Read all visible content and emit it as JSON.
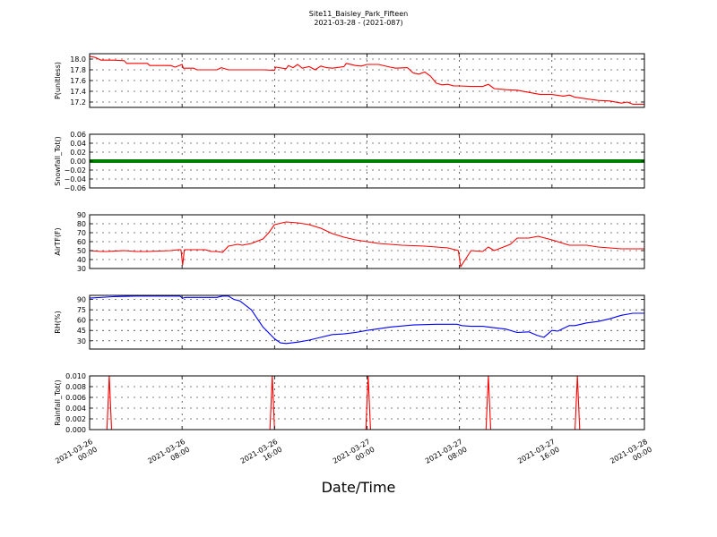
{
  "figure": {
    "title_line1": "Site11_Baisley_Park_Fifteen",
    "title_line2": "2021-03-28 - (2021-087)",
    "xlabel": "Date/Time",
    "x_ticks": [
      {
        "t": 0,
        "line1": "2021-03-26",
        "line2": "00:00"
      },
      {
        "t": 8,
        "line1": "2021-03-26",
        "line2": "08:00"
      },
      {
        "t": 16,
        "line1": "2021-03-26",
        "line2": "16:00"
      },
      {
        "t": 24,
        "line1": "2021-03-27",
        "line2": "00:00"
      },
      {
        "t": 32,
        "line1": "2021-03-27",
        "line2": "08:00"
      },
      {
        "t": 40,
        "line1": "2021-03-27",
        "line2": "16:00"
      },
      {
        "t": 48,
        "line1": "2021-03-28",
        "line2": "00:00"
      }
    ]
  },
  "chart_data": [
    {
      "type": "line",
      "ylabel": "P(unitless)",
      "color": "#ff0000",
      "ylim": [
        17.1,
        18.1
      ],
      "yticks": [
        "18.0",
        "17.8",
        "17.6",
        "17.4",
        "17.2"
      ],
      "ytick_values": [
        18.0,
        17.8,
        17.6,
        17.4,
        17.2
      ],
      "x_hours": [
        0,
        0.5,
        1,
        2,
        3,
        3.2,
        5,
        5.2,
        7,
        7.4,
        8,
        8.1,
        9,
        9.3,
        11,
        11.4,
        12,
        13,
        15,
        16,
        16.1,
        17,
        17.2,
        17.6,
        18,
        18.4,
        19,
        19.5,
        20,
        20.5,
        21,
        22,
        22.2,
        23,
        23.5,
        24,
        25,
        26,
        26.5,
        27.5,
        28,
        28.5,
        29,
        29.5,
        30,
        30.5,
        31,
        31.5,
        32,
        33,
        34,
        34.5,
        35,
        36,
        37,
        38,
        39,
        40,
        41,
        41.5,
        42,
        43,
        44,
        45,
        46,
        46.5,
        47,
        48
      ],
      "values": [
        18.05,
        18.03,
        17.98,
        17.98,
        17.97,
        17.92,
        17.92,
        17.88,
        17.88,
        17.85,
        17.9,
        17.83,
        17.83,
        17.8,
        17.8,
        17.84,
        17.8,
        17.8,
        17.8,
        17.79,
        17.85,
        17.82,
        17.88,
        17.84,
        17.9,
        17.83,
        17.86,
        17.8,
        17.87,
        17.84,
        17.83,
        17.86,
        17.92,
        17.88,
        17.87,
        17.9,
        17.9,
        17.85,
        17.83,
        17.84,
        17.74,
        17.72,
        17.76,
        17.68,
        17.55,
        17.52,
        17.53,
        17.5,
        17.5,
        17.49,
        17.49,
        17.53,
        17.45,
        17.43,
        17.42,
        17.38,
        17.34,
        17.34,
        17.31,
        17.33,
        17.29,
        17.26,
        17.23,
        17.22,
        17.18,
        17.2,
        17.16,
        17.16
      ]
    },
    {
      "type": "line",
      "ylabel": "Snowfall_Tot()",
      "color": "#008000",
      "ylim": [
        -0.06,
        0.06
      ],
      "yticks": [
        "0.06",
        "0.04",
        "0.02",
        "0.00",
        "−0.02",
        "−0.04",
        "−0.06"
      ],
      "ytick_values": [
        0.06,
        0.04,
        0.02,
        0,
        -0.02,
        -0.04,
        -0.06
      ],
      "x_hours": [
        0,
        48
      ],
      "values": [
        0,
        0
      ]
    },
    {
      "type": "line",
      "ylabel": "AirTF(F)",
      "color": "#ff0000",
      "ylim": [
        30,
        90
      ],
      "yticks": [
        "90",
        "80",
        "70",
        "60",
        "50",
        "40",
        "30"
      ],
      "ytick_values": [
        90,
        80,
        70,
        60,
        50,
        40,
        30
      ],
      "x_hours": [
        0,
        1,
        1.5,
        3,
        4,
        5,
        7,
        7.7,
        7.9,
        8.05,
        8.2,
        9,
        10,
        10.5,
        11,
        11.5,
        12,
        12.8,
        13.2,
        14,
        15,
        15.5,
        16,
        17,
        18,
        19,
        20,
        21,
        22,
        23,
        25,
        27,
        29,
        31,
        31.6,
        31.9,
        32.1,
        33,
        34,
        34.5,
        35,
        36,
        36.4,
        37,
        38,
        38.8,
        40,
        41,
        41.5,
        43,
        44,
        45,
        46,
        47,
        48
      ],
      "values": [
        50,
        49,
        49,
        50,
        49,
        49,
        50,
        51,
        51,
        34,
        51,
        51,
        51,
        49,
        49,
        48,
        55,
        57,
        56,
        58,
        63,
        70,
        79,
        82,
        81,
        79,
        75,
        69,
        65,
        62,
        58,
        56,
        55,
        53,
        51,
        50,
        32,
        50,
        49,
        54,
        50,
        55,
        57,
        64,
        64,
        66,
        62,
        58,
        56,
        56,
        54,
        53,
        52,
        52,
        52
      ]
    },
    {
      "type": "line",
      "ylabel": "RH(%)",
      "color": "#0000ff",
      "ylim": [
        18,
        96
      ],
      "yticks": [
        "90",
        "75",
        "60",
        "45",
        "30"
      ],
      "ytick_values": [
        90,
        75,
        60,
        45,
        30
      ],
      "x_hours": [
        0,
        2,
        4,
        6,
        7.8,
        8.05,
        8.3,
        10,
        11,
        11.5,
        12,
        12.5,
        13,
        14,
        15,
        16,
        16.5,
        17,
        18,
        19,
        20,
        21,
        22,
        23,
        24,
        26,
        28,
        30,
        31.8,
        32.2,
        33,
        34,
        35,
        36,
        37,
        38,
        38.7,
        39.3,
        40,
        40.5,
        41,
        41.5,
        42,
        43,
        44,
        45,
        46,
        47,
        48
      ],
      "values": [
        92,
        94,
        95,
        95,
        95,
        92,
        93,
        93,
        93,
        95,
        95,
        90,
        88,
        75,
        50,
        33,
        27,
        26,
        28,
        31,
        35,
        39,
        40,
        42,
        45,
        50,
        53,
        54,
        54,
        52,
        51,
        51,
        49,
        47,
        42,
        43,
        38,
        35,
        45,
        44,
        48,
        52,
        52,
        56,
        58,
        62,
        67,
        70,
        70
      ]
    },
    {
      "type": "line",
      "ylabel": "Rainfall_Tot()",
      "color": "#ff0000",
      "ylim": [
        0,
        0.01
      ],
      "yticks": [
        "0.010",
        "0.008",
        "0.006",
        "0.004",
        "0.002",
        "0.000"
      ],
      "ytick_values": [
        0.01,
        0.008,
        0.006,
        0.004,
        0.002,
        0
      ],
      "x_hours": [
        0,
        1.5,
        1.7,
        1.9,
        15.6,
        15.8,
        16.0,
        23.9,
        24.1,
        24.3,
        34.3,
        34.5,
        34.7,
        42.0,
        42.2,
        42.4,
        48
      ],
      "values": [
        0,
        0,
        0.01,
        0,
        0,
        0.01,
        0,
        0,
        0.01,
        0,
        0,
        0.01,
        0,
        0,
        0.01,
        0,
        0
      ]
    }
  ]
}
